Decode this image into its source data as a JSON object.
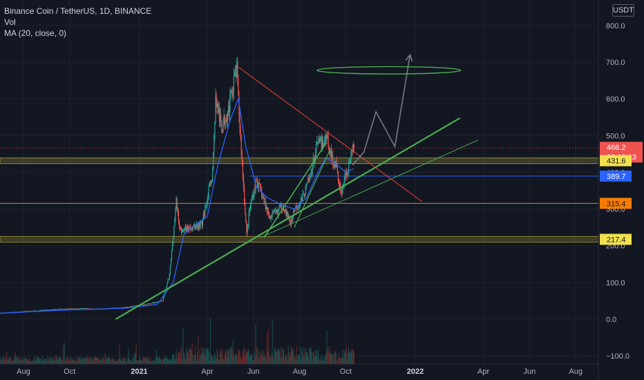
{
  "header": {
    "title": "Binance Coin / TetherUS, 1D, BINANCE",
    "vol_label": "Vol",
    "ma_label": "MA (20, close, 0)",
    "currency": "USDT"
  },
  "colors": {
    "background": "#131722",
    "grid": "#1e2230",
    "up": "#26a69a",
    "down": "#ef5350",
    "ma": "#2962ff",
    "trend_green": "#4caf50",
    "support_band": "#8d8433",
    "level_orange": "#f57c00",
    "level_blue": "#2962ff",
    "resistance_red": "#f44336",
    "projection": "#787b86",
    "target_ellipse": "#4caf50"
  },
  "chart_data": {
    "type": "candlestick",
    "symbol": "Binance Coin / TetherUS",
    "interval": "1D",
    "exchange": "BINANCE",
    "y_axis": {
      "min": -115,
      "max": 845,
      "ticks": [
        -100.0,
        0.0,
        100.0,
        200.0,
        300.0,
        400.0,
        500.0,
        600.0,
        700.0,
        800.0
      ],
      "tick_labels": [
        "−100.0",
        "0.0",
        "100.0",
        "200.0",
        "300.0",
        "400.0",
        "500.0",
        "600.0",
        "700.0",
        "800.0"
      ]
    },
    "x_axis": {
      "labels": [
        "Aug",
        "Oct",
        "2021",
        "Apr",
        "Jun",
        "Aug",
        "Oct",
        "2022",
        "Apr",
        "Jun",
        "Aug"
      ],
      "bold": [
        "2021",
        "2022"
      ],
      "start": "2020-07-01",
      "end": "2022-08-31"
    },
    "price_series": [
      [
        "2020-07-01",
        16
      ],
      [
        "2020-08-15",
        22
      ],
      [
        "2020-09-15",
        27
      ],
      [
        "2020-10-15",
        29
      ],
      [
        "2020-11-15",
        28
      ],
      [
        "2020-12-15",
        32
      ],
      [
        "2021-01-15",
        42
      ],
      [
        "2021-02-01",
        50
      ],
      [
        "2021-02-10",
        120
      ],
      [
        "2021-02-19",
        320
      ],
      [
        "2021-02-24",
        240
      ],
      [
        "2021-03-10",
        250
      ],
      [
        "2021-03-25",
        260
      ],
      [
        "2021-04-08",
        400
      ],
      [
        "2021-04-12",
        600
      ],
      [
        "2021-04-20",
        520
      ],
      [
        "2021-04-30",
        580
      ],
      [
        "2021-05-05",
        640
      ],
      [
        "2021-05-10",
        680
      ],
      [
        "2021-05-13",
        560
      ],
      [
        "2021-05-19",
        360
      ],
      [
        "2021-05-23",
        230
      ],
      [
        "2021-05-27",
        300
      ],
      [
        "2021-06-05",
        380
      ],
      [
        "2021-06-15",
        320
      ],
      [
        "2021-06-22",
        280
      ],
      [
        "2021-07-01",
        290
      ],
      [
        "2021-07-10",
        310
      ],
      [
        "2021-07-20",
        260
      ],
      [
        "2021-07-25",
        300
      ],
      [
        "2021-08-05",
        330
      ],
      [
        "2021-08-15",
        390
      ],
      [
        "2021-08-25",
        480
      ],
      [
        "2021-09-01",
        480
      ],
      [
        "2021-09-06",
        500
      ],
      [
        "2021-09-12",
        440
      ],
      [
        "2021-09-18",
        420
      ],
      [
        "2021-09-25",
        340
      ],
      [
        "2021-09-29",
        380
      ],
      [
        "2021-10-06",
        430
      ],
      [
        "2021-10-12",
        466
      ]
    ],
    "ma_series": [
      [
        "2020-07-01",
        16
      ],
      [
        "2020-09-15",
        24
      ],
      [
        "2020-12-15",
        30
      ],
      [
        "2021-01-25",
        40
      ],
      [
        "2021-02-15",
        100
      ],
      [
        "2021-03-01",
        230
      ],
      [
        "2021-03-15",
        255
      ],
      [
        "2021-04-01",
        280
      ],
      [
        "2021-04-15",
        420
      ],
      [
        "2021-05-01",
        540
      ],
      [
        "2021-05-12",
        600
      ],
      [
        "2021-05-22",
        470
      ],
      [
        "2021-06-05",
        360
      ],
      [
        "2021-06-20",
        330
      ],
      [
        "2021-07-10",
        310
      ],
      [
        "2021-07-25",
        300
      ],
      [
        "2021-08-10",
        330
      ],
      [
        "2021-08-25",
        400
      ],
      [
        "2021-09-05",
        440
      ],
      [
        "2021-09-20",
        420
      ],
      [
        "2021-10-01",
        400
      ],
      [
        "2021-10-12",
        410
      ]
    ],
    "horizontal_levels": [
      {
        "kind": "band",
        "value": 431.6,
        "label": "431.6"
      },
      {
        "kind": "band",
        "value": 217.4,
        "label": "217.4"
      },
      {
        "kind": "line",
        "value": 315.4,
        "label": "315.4"
      },
      {
        "kind": "segment",
        "value": 389.7,
        "label": "389.7",
        "from": "2021-05-27"
      }
    ],
    "last_price": {
      "value": 466.2,
      "label": "466.2",
      "countdown": "20:02:13"
    },
    "drawings": {
      "main_trendline": {
        "from": [
          "2020-12-01",
          0
        ],
        "to": [
          "2022-03-01",
          548
        ]
      },
      "thin_trendline": {
        "from": [
          "2021-06-10",
          222
        ],
        "to": [
          "2022-03-25",
          488
        ]
      },
      "steep_trendline_1": {
        "from": [
          "2021-06-15",
          222
        ],
        "to": [
          "2021-09-05",
          480
        ]
      },
      "steep_trendline_2": {
        "from": [
          "2021-07-25",
          250
        ],
        "to": [
          "2021-09-10",
          460
        ]
      },
      "resistance_line": {
        "from": [
          "2021-05-10",
          690
        ],
        "to": [
          "2022-01-10",
          320
        ]
      },
      "projection_path": [
        [
          "2021-10-10",
          420
        ],
        [
          "2021-10-25",
          455
        ],
        [
          "2021-11-10",
          565
        ],
        [
          "2021-12-05",
          470
        ],
        [
          "2021-12-25",
          720
        ]
      ],
      "target_ellipse": {
        "center": [
          "2021-11-27",
          678
        ],
        "x_half_span_days": 95,
        "y_half_span": 10
      }
    }
  }
}
